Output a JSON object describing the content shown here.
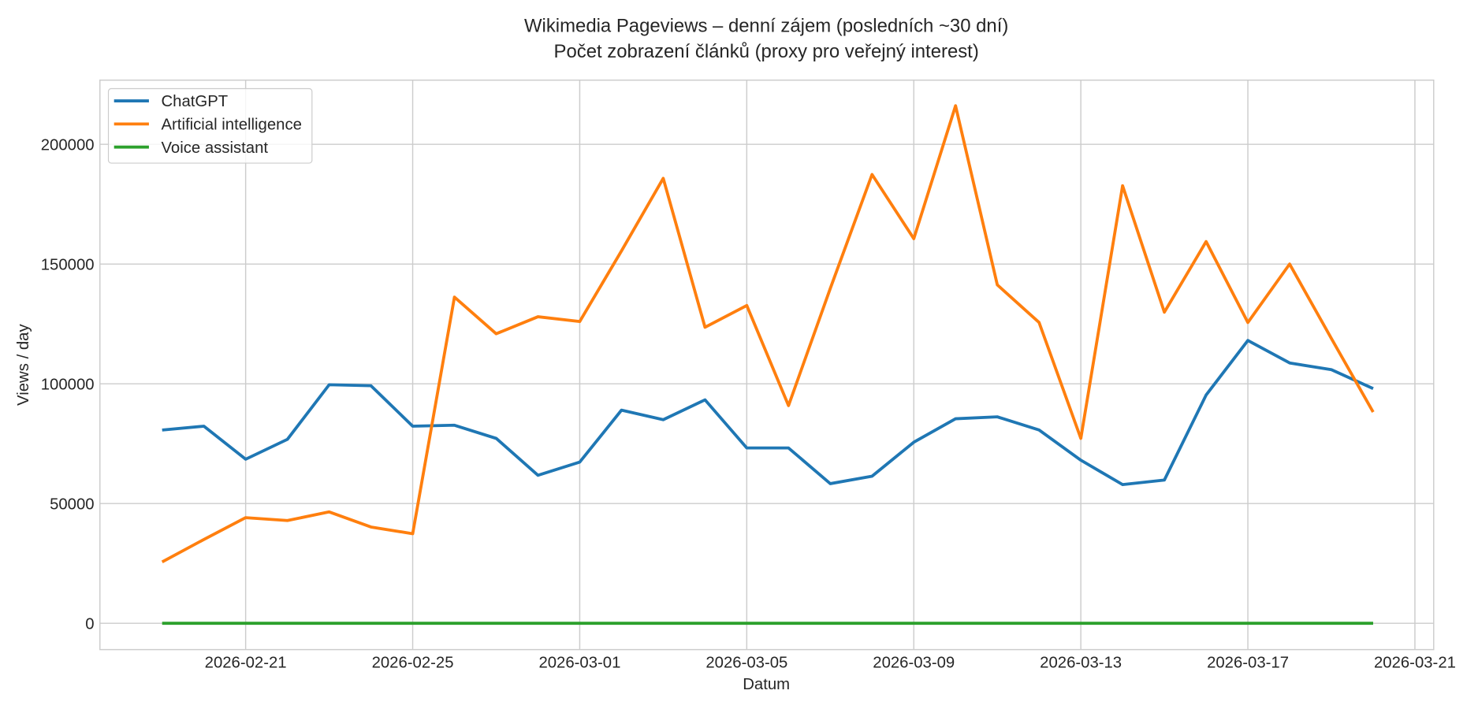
{
  "chart_data": {
    "type": "line",
    "title": "Wikimedia Pageviews – denní zájem (posledních ~30 dní)",
    "subtitle": "Počet zobrazení článků (proxy pro veřejný interest)",
    "xlabel": "Datum",
    "ylabel": "Views / day",
    "x_start": "2026-02-19",
    "x": [
      "2026-02-19",
      "2026-02-20",
      "2026-02-21",
      "2026-02-22",
      "2026-02-23",
      "2026-02-24",
      "2026-02-25",
      "2026-02-26",
      "2026-02-27",
      "2026-02-28",
      "2026-03-01",
      "2026-03-02",
      "2026-03-03",
      "2026-03-04",
      "2026-03-05",
      "2026-03-06",
      "2026-03-07",
      "2026-03-08",
      "2026-03-09",
      "2026-03-10",
      "2026-03-11",
      "2026-03-12",
      "2026-03-13",
      "2026-03-14",
      "2026-03-15",
      "2026-03-16",
      "2026-03-17",
      "2026-03-18",
      "2026-03-19",
      "2026-03-20"
    ],
    "xticks": [
      "2026-02-21",
      "2026-02-25",
      "2026-03-01",
      "2026-03-05",
      "2026-03-09",
      "2026-03-13",
      "2026-03-17",
      "2026-03-21"
    ],
    "xtick_day_offsets": [
      2,
      6,
      10,
      14,
      18,
      22,
      26,
      30
    ],
    "xlim_day_offsets": [
      -1.49,
      30.45
    ],
    "yticks": [
      "0",
      "50000",
      "100000",
      "150000",
      "200000"
    ],
    "ylim": [
      -11000,
      226800
    ],
    "grid": true,
    "legend_position": "top-left",
    "series": [
      {
        "name": "ChatGPT",
        "color": "#1f77b4",
        "values": [
          80700,
          82300,
          68500,
          76800,
          99600,
          99200,
          82300,
          82700,
          77200,
          61800,
          67300,
          89000,
          85000,
          93300,
          73200,
          73200,
          58300,
          61400,
          75600,
          85400,
          86200,
          80700,
          68100,
          57900,
          59800,
          95300,
          118100,
          108700,
          105900,
          98000
        ]
      },
      {
        "name": "Artificial intelligence",
        "color": "#ff7f0e",
        "values": [
          25600,
          35000,
          44100,
          42900,
          46500,
          40200,
          37400,
          136200,
          120900,
          128000,
          126000,
          155500,
          185800,
          123600,
          132700,
          90900,
          139800,
          187400,
          160600,
          216100,
          141300,
          125600,
          77200,
          182700,
          129900,
          159400,
          125600,
          150000,
          118900,
          88200
        ]
      },
      {
        "name": "Voice assistant",
        "color": "#2ca02c",
        "values": [
          0,
          0,
          0,
          0,
          0,
          0,
          0,
          0,
          0,
          0,
          0,
          0,
          0,
          0,
          0,
          0,
          0,
          0,
          0,
          0,
          0,
          0,
          0,
          0,
          0,
          0,
          0,
          0,
          0,
          0
        ]
      }
    ]
  }
}
